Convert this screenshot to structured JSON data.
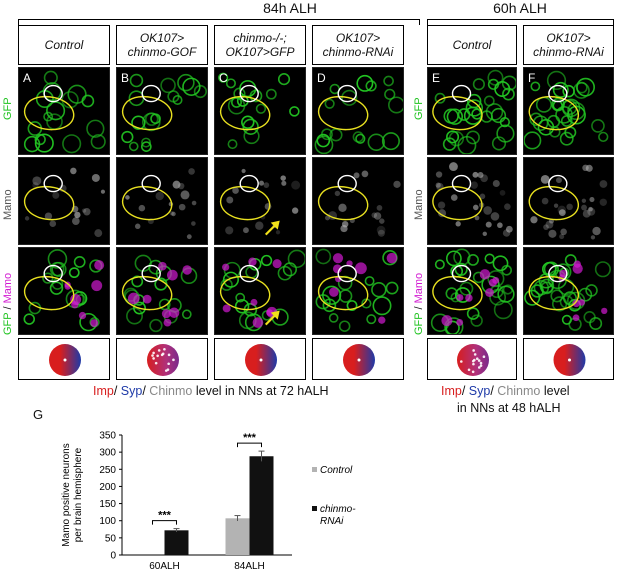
{
  "headers": {
    "left": "84h ALH",
    "right": "60h ALH"
  },
  "columns": [
    {
      "letter": "A",
      "line1": "Control",
      "line2": "",
      "arrow": false,
      "circle": "single-dot"
    },
    {
      "letter": "B",
      "line1": "OK107>",
      "line2": "chinmo-GOF",
      "arrow": false,
      "circle": "dotted"
    },
    {
      "letter": "C",
      "line1": "chinmo-/-;",
      "line2": "OK107>GFP",
      "arrow": true,
      "circle": "single-dot"
    },
    {
      "letter": "D",
      "line1": "OK107>",
      "line2": "chinmo-RNAi",
      "arrow": false,
      "circle": "single-dot"
    },
    {
      "letter": "E",
      "line1": "Control",
      "line2": "",
      "arrow": false,
      "circle": "dotted"
    },
    {
      "letter": "F",
      "line1": "OK107>",
      "line2": "chinmo-RNAi",
      "arrow": false,
      "circle": "single-dot"
    }
  ],
  "row_labels": {
    "gfp": "GFP",
    "mamo": "Mamo",
    "merge_gfp": "GFP",
    "merge_sep": "/",
    "merge_mamo": "Mamo"
  },
  "colors": {
    "gfp": "#22c422",
    "mamo_label": "#555555",
    "magenta": "#d21ad2",
    "imp": "#d81e1e",
    "syp": "#1e3aa8",
    "chinmo": "#888888",
    "outline_yellow": "#e8e020",
    "outline_white": "#ffffff",
    "arrow": "#f2e21a",
    "bar_control": "#b3b3b3",
    "bar_rnai": "#111111"
  },
  "caption_left": {
    "imp": "Imp",
    "sep1": "/ ",
    "syp": "Syp",
    "sep2": "/ ",
    "chinmo": "Chinmo",
    "rest": " level in NNs at 72 hALH"
  },
  "caption_right": {
    "imp": "Imp",
    "sep1": "/ ",
    "syp": "Syp",
    "sep2": "/ ",
    "chinmo": "Chinmo",
    "rest_line1": " level",
    "line2": "in NNs at 48 hALH"
  },
  "chart_panel_letter": "G",
  "chart_data": {
    "type": "bar",
    "categories": [
      "60ALH",
      "84ALH"
    ],
    "series": [
      {
        "name": "Control",
        "values": [
          0,
          107
        ],
        "errors": [
          0,
          8
        ]
      },
      {
        "name": "chinmo-RNAi",
        "values": [
          72,
          288
        ],
        "errors": [
          5,
          15
        ]
      }
    ],
    "ylabel": "Mamo positive neurons per brain hemisphere",
    "ylabel_line1": "Mamo positive neurons",
    "ylabel_line2": "per brain hemisphere",
    "ylim": [
      0,
      350
    ],
    "yticks": [
      0,
      50,
      100,
      150,
      200,
      250,
      300,
      350
    ],
    "significance": [
      "***",
      "***"
    ],
    "legend": [
      "Control",
      "chinmo-",
      "RNAi"
    ],
    "legend_placement": "right"
  }
}
